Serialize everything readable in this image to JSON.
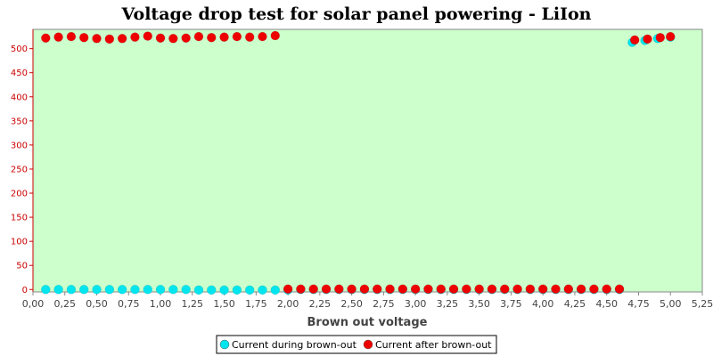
{
  "chart_data": {
    "type": "scatter",
    "title": "Voltage drop test for solar panel powering -  LiIon",
    "xlabel": "Brown out voltage",
    "ylabel": "",
    "xlim": [
      0,
      5.25
    ],
    "ylim": [
      -5,
      540
    ],
    "x_ticks": [
      "0,00",
      "0,25",
      "0,50",
      "0,75",
      "1,00",
      "1,25",
      "1,50",
      "1,75",
      "2,00",
      "2,25",
      "2,50",
      "2,75",
      "3,00",
      "3,25",
      "3,50",
      "3,75",
      "4,00",
      "4,25",
      "4,50",
      "4,75",
      "5,00",
      "5,25"
    ],
    "x_tick_values": [
      0,
      0.25,
      0.5,
      0.75,
      1,
      1.25,
      1.5,
      1.75,
      2,
      2.25,
      2.5,
      2.75,
      3,
      3.25,
      3.5,
      3.75,
      4,
      4.25,
      4.5,
      4.75,
      5,
      5.25
    ],
    "y_ticks": [
      "0",
      "50",
      "100",
      "150",
      "200",
      "250",
      "300",
      "350",
      "400",
      "450",
      "500"
    ],
    "y_tick_values": [
      0,
      50,
      100,
      150,
      200,
      250,
      300,
      350,
      400,
      450,
      500
    ],
    "grid": false,
    "legend": "bottom",
    "background": "#ccffcc",
    "series": [
      {
        "name": "Current during brown-out",
        "color": "#00e5ee",
        "points": [
          [
            0.1,
            0
          ],
          [
            0.2,
            0
          ],
          [
            0.3,
            0
          ],
          [
            0.4,
            0
          ],
          [
            0.5,
            0
          ],
          [
            0.6,
            0
          ],
          [
            0.7,
            0
          ],
          [
            0.8,
            0
          ],
          [
            0.9,
            0
          ],
          [
            1.0,
            0
          ],
          [
            1.1,
            0
          ],
          [
            1.2,
            0
          ],
          [
            1.3,
            -1
          ],
          [
            1.4,
            -1
          ],
          [
            1.5,
            -1
          ],
          [
            1.6,
            -1
          ],
          [
            1.7,
            -1
          ],
          [
            1.8,
            -1
          ],
          [
            1.9,
            -1
          ],
          [
            2.0,
            -1
          ],
          [
            2.1,
            0
          ],
          [
            2.2,
            0
          ],
          [
            2.3,
            0
          ],
          [
            2.4,
            0
          ],
          [
            2.5,
            0
          ],
          [
            2.6,
            0
          ],
          [
            2.7,
            0
          ],
          [
            2.8,
            0
          ],
          [
            2.9,
            0
          ],
          [
            3.0,
            0
          ],
          [
            3.1,
            0
          ],
          [
            3.2,
            0
          ],
          [
            3.3,
            0
          ],
          [
            3.4,
            0
          ],
          [
            3.5,
            0
          ],
          [
            3.6,
            0
          ],
          [
            3.7,
            0
          ],
          [
            3.8,
            0
          ],
          [
            3.9,
            0
          ],
          [
            4.0,
            0
          ],
          [
            4.1,
            0
          ],
          [
            4.2,
            0
          ],
          [
            4.3,
            0
          ],
          [
            4.4,
            0
          ],
          [
            4.5,
            0
          ],
          [
            4.6,
            0
          ],
          [
            4.7,
            513
          ],
          [
            4.8,
            517
          ],
          [
            4.9,
            521
          ],
          [
            5.0,
            524
          ]
        ]
      },
      {
        "name": "Current after brown-out",
        "color": "#ee0000",
        "points": [
          [
            0.1,
            522
          ],
          [
            0.2,
            524
          ],
          [
            0.3,
            525
          ],
          [
            0.4,
            523
          ],
          [
            0.5,
            521
          ],
          [
            0.6,
            520
          ],
          [
            0.7,
            521
          ],
          [
            0.8,
            524
          ],
          [
            0.9,
            526
          ],
          [
            1.0,
            522
          ],
          [
            1.1,
            521
          ],
          [
            1.2,
            522
          ],
          [
            1.3,
            525
          ],
          [
            1.4,
            523
          ],
          [
            1.5,
            524
          ],
          [
            1.6,
            525
          ],
          [
            1.7,
            524
          ],
          [
            1.8,
            525
          ],
          [
            1.9,
            527
          ],
          [
            2.0,
            1
          ],
          [
            2.1,
            1
          ],
          [
            2.2,
            1
          ],
          [
            2.3,
            1
          ],
          [
            2.4,
            1
          ],
          [
            2.5,
            1
          ],
          [
            2.6,
            1
          ],
          [
            2.7,
            1
          ],
          [
            2.8,
            1
          ],
          [
            2.9,
            1
          ],
          [
            3.0,
            1
          ],
          [
            3.1,
            1
          ],
          [
            3.2,
            1
          ],
          [
            3.3,
            1
          ],
          [
            3.4,
            1
          ],
          [
            3.5,
            1
          ],
          [
            3.6,
            1
          ],
          [
            3.7,
            1
          ],
          [
            3.8,
            1
          ],
          [
            3.9,
            1
          ],
          [
            4.0,
            1
          ],
          [
            4.1,
            1
          ],
          [
            4.2,
            1
          ],
          [
            4.3,
            1
          ],
          [
            4.4,
            1
          ],
          [
            4.5,
            1
          ],
          [
            4.6,
            1
          ],
          [
            4.72,
            518
          ],
          [
            4.82,
            520
          ],
          [
            4.92,
            523
          ],
          [
            5.0,
            525
          ]
        ]
      }
    ]
  }
}
